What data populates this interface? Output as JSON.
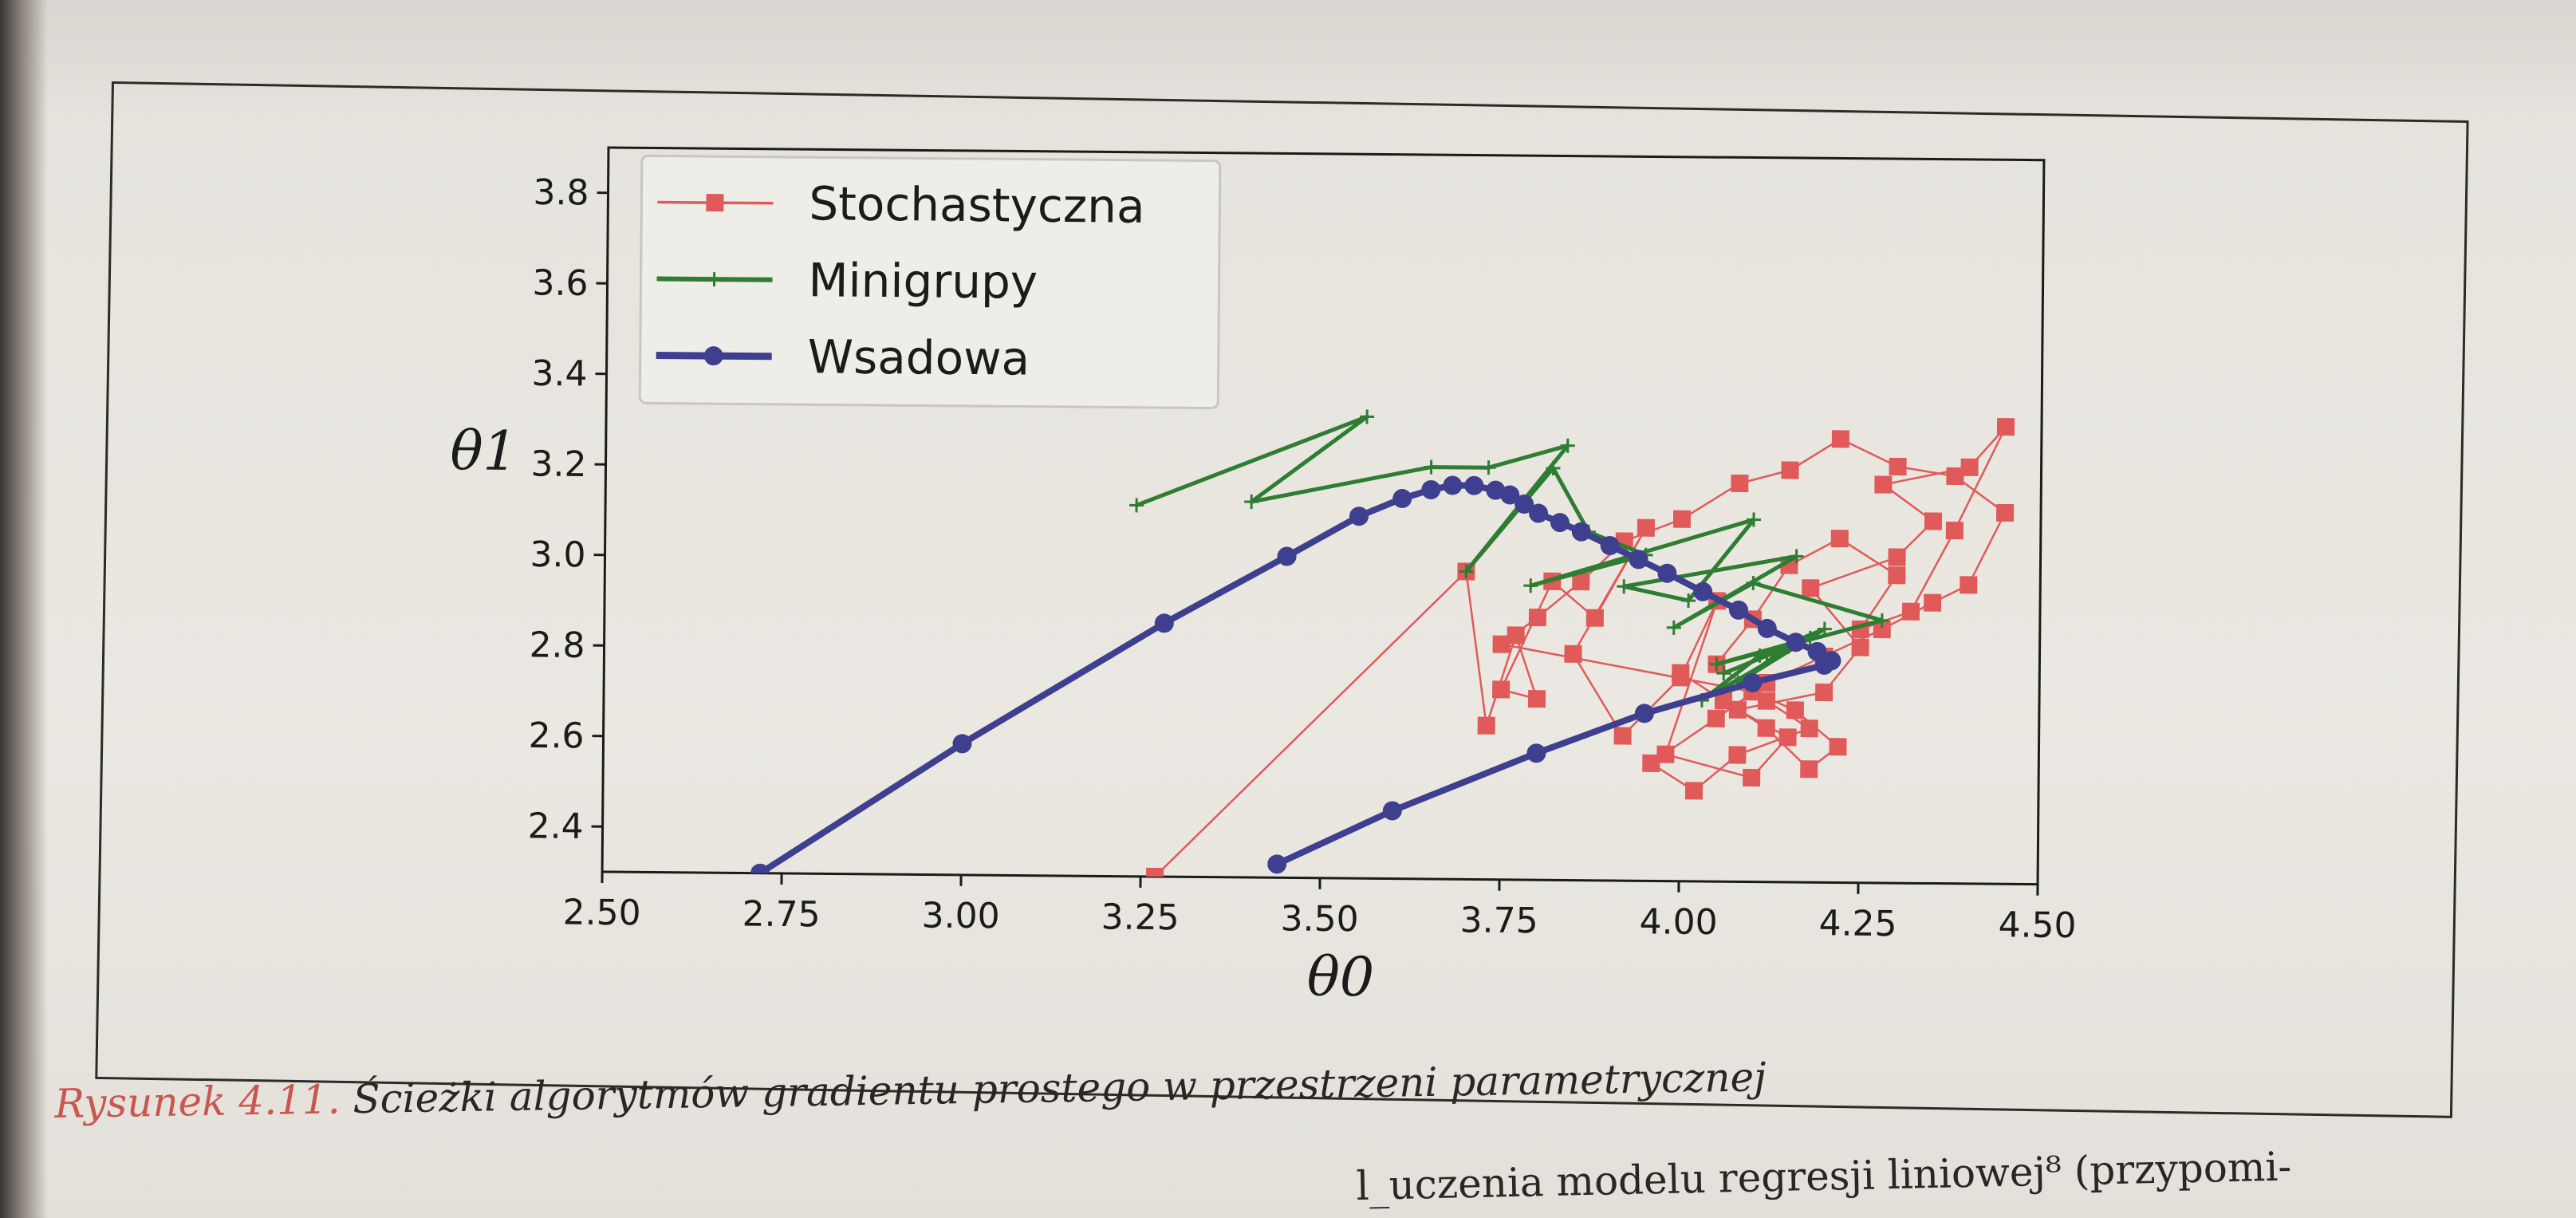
{
  "caption": {
    "figure_label": "Rysunek 4.11.",
    "text": "Ścieżki algorytmów gradientu prostego w przestrzeni parametrycznej"
  },
  "body_text_fragment": "l_uczenia modelu regresji liniowej⁸ (przypomi-",
  "colors": {
    "stochastic": "#e05a5a",
    "minibatch": "#2e7d32",
    "batch": "#3f3f8f"
  },
  "chart_data": {
    "type": "line",
    "xlabel": "θ0",
    "ylabel": "θ1",
    "xlim": [
      2.5,
      4.5
    ],
    "ylim": [
      2.3,
      3.9
    ],
    "xticks": [
      "2.50",
      "2.75",
      "3.00",
      "3.25",
      "3.50",
      "3.75",
      "4.00",
      "4.25",
      "4.50"
    ],
    "yticks": [
      "2.4",
      "2.6",
      "2.8",
      "3.0",
      "3.2",
      "3.4",
      "3.6",
      "3.8"
    ],
    "legend_position": "upper-left",
    "grid": false,
    "series": [
      {
        "name": "Stochastyczna",
        "marker": "square",
        "x": [
          3.27,
          3.7,
          3.73,
          3.77,
          3.8,
          3.75,
          3.82,
          3.88,
          3.95,
          3.85,
          3.92,
          4.0,
          4.05,
          3.98,
          4.1,
          4.15,
          4.08,
          4.2,
          4.25,
          4.18,
          4.3,
          4.35,
          4.28,
          4.4,
          4.45,
          4.38,
          4.32,
          4.25,
          4.3,
          4.22,
          4.15,
          4.1,
          4.05,
          4.12,
          4.18,
          4.08,
          4.02,
          3.96,
          4.05,
          4.12,
          4.2,
          4.28,
          4.35,
          4.4,
          4.45,
          4.38,
          4.3,
          4.22,
          4.15,
          4.08,
          4.0,
          3.92,
          3.86,
          3.8,
          3.75,
          4.1,
          4.16,
          4.22,
          4.18,
          4.12,
          4.06,
          4.0
        ],
        "y": [
          2.3,
          2.98,
          2.64,
          2.84,
          2.7,
          2.72,
          2.96,
          2.88,
          3.08,
          2.8,
          2.62,
          2.75,
          2.92,
          2.58,
          2.53,
          2.62,
          2.68,
          2.72,
          2.82,
          2.95,
          3.02,
          3.1,
          3.18,
          3.22,
          3.31,
          3.08,
          2.9,
          2.86,
          2.98,
          3.06,
          3.0,
          2.88,
          2.78,
          2.7,
          2.64,
          2.58,
          2.5,
          2.56,
          2.66,
          2.74,
          2.8,
          2.86,
          2.92,
          2.96,
          3.12,
          3.2,
          3.22,
          3.28,
          3.21,
          3.18,
          3.1,
          3.05,
          2.96,
          2.88,
          2.82,
          2.72,
          2.68,
          2.6,
          2.55,
          2.64,
          2.7,
          2.76
        ]
      },
      {
        "name": "Minigrupy",
        "marker": "plus",
        "x": [
          3.24,
          3.56,
          3.4,
          3.65,
          3.73,
          3.84,
          3.7,
          3.82,
          3.87,
          3.95,
          3.79,
          4.1,
          4.01,
          3.92,
          4.16,
          3.99,
          4.1,
          4.28,
          4.05,
          4.18,
          4.03,
          4.11,
          4.2,
          4.08,
          4.15,
          4.06,
          4.12
        ],
        "y": [
          3.12,
          3.32,
          3.13,
          3.21,
          3.21,
          3.26,
          2.98,
          3.21,
          3.07,
          3.02,
          2.95,
          3.1,
          2.92,
          2.95,
          3.02,
          2.86,
          2.96,
          2.88,
          2.78,
          2.84,
          2.7,
          2.8,
          2.86,
          2.74,
          2.82,
          2.76,
          2.8
        ]
      },
      {
        "name": "Wsadowa",
        "marker": "circle",
        "x": [
          2.72,
          3.0,
          3.28,
          3.45,
          3.55,
          3.61,
          3.65,
          3.68,
          3.71,
          3.74,
          3.76,
          3.78,
          3.8,
          3.83,
          3.86,
          3.9,
          3.94,
          3.98,
          4.03,
          4.08,
          4.12,
          4.16,
          4.19,
          4.21,
          4.2,
          4.1,
          3.95,
          3.8,
          3.6,
          3.44
        ],
        "y": [
          2.3,
          2.59,
          2.86,
          3.01,
          3.1,
          3.14,
          3.16,
          3.17,
          3.17,
          3.16,
          3.15,
          3.13,
          3.11,
          3.09,
          3.07,
          3.04,
          3.01,
          2.98,
          2.94,
          2.9,
          2.86,
          2.83,
          2.81,
          2.79,
          2.78,
          2.74,
          2.67,
          2.58,
          2.45,
          2.33
        ]
      }
    ]
  }
}
